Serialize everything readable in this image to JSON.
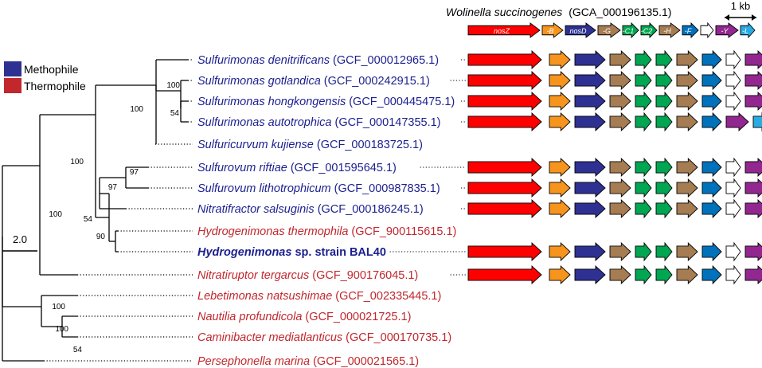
{
  "reference": {
    "species": "Wolinella succinogenes",
    "accession": "(GCA_000196135.1)",
    "genes": [
      "nosZ",
      "-B",
      "nosD",
      "-G",
      "-C1",
      "-C2",
      "-H",
      "-F",
      "",
      "-Y",
      "-L"
    ]
  },
  "scale_genes": "1 kb",
  "scale_tree": "2.0",
  "legend": [
    {
      "label": "Methophile",
      "color": "#2e3192"
    },
    {
      "label": "Thermophile",
      "color": "#c1272d"
    }
  ],
  "colors": {
    "nosZ": "#ff0000",
    "nosB": "#f7941d",
    "nosD": "#2e3192",
    "nosG": "#a67c52",
    "nosC": "#00a651",
    "nosF": "#0072bc",
    "none": "#ffffff",
    "nosY": "#92278f",
    "nosL": "#29abe2",
    "meso_text": "#1b1f8f",
    "thermo_text": "#c1272d"
  },
  "taxa": [
    {
      "italic": "Sulfurimonas denitrificans",
      "rest": " (GCF_000012965.1)",
      "group": "meso"
    },
    {
      "italic": "Sulfurimonas gotlandica",
      "rest": " (GCF_000242915.1)",
      "group": "meso"
    },
    {
      "italic": "Sulfurimonas hongkongensis",
      "rest": " (GCF_000445475.1)",
      "group": "meso"
    },
    {
      "italic": "Sulfurimonas autotrophica",
      "rest": " (GCF_000147355.1)",
      "group": "meso"
    },
    {
      "italic": "Sulfuricurvum kujiense",
      "rest": " (GCF_000183725.1)",
      "group": "meso"
    },
    {
      "italic": "Sulfurovum riftiae",
      "rest": " (GCF_001595645.1)",
      "group": "meso"
    },
    {
      "italic": "Sulfurovum lithotrophicum",
      "rest": " (GCF_000987835.1)",
      "group": "meso"
    },
    {
      "italic": "Nitratifractor salsuginis",
      "rest": " (GCF_000186245.1)",
      "group": "meso"
    },
    {
      "italic": "Hydrogenimonas thermophila",
      "rest": " (GCF_900115615.1)",
      "group": "thermo"
    },
    {
      "italic": "Hydrogenimonas",
      "rest": " sp. strain BAL40",
      "group": "meso",
      "bold": true
    },
    {
      "italic": "Nitratiruptor tergarcus",
      "rest": " (GCF_900176045.1)",
      "group": "thermo"
    },
    {
      "italic": "Lebetimonas natsushimae",
      "rest": " (GCF_002335445.1)",
      "group": "thermo"
    },
    {
      "italic": "Nautilia profundicola",
      "rest": " (GCF_000021725.1)",
      "group": "thermo"
    },
    {
      "italic": "Caminibacter mediatlanticus",
      "rest": " (GCF_000170735.1)",
      "group": "thermo"
    },
    {
      "italic": "Persephonella marina",
      "rest": " (GCF_000021565.1)",
      "group": "thermo"
    }
  ],
  "bootstrap": [
    "100",
    "100",
    "54",
    "100",
    "100",
    "97",
    "97",
    "54",
    "90",
    "100",
    "100",
    "54"
  ],
  "clusters": [
    [
      "nosZ",
      "nosB",
      "nosD",
      "nosG",
      "nosC",
      "nosC",
      "nosG",
      "nosF",
      "none",
      "nosY",
      "nosL"
    ],
    [
      "nosZ",
      "nosB",
      "nosD",
      "nosG",
      "nosC",
      "nosC",
      "nosG",
      "nosF",
      "none",
      "nosY",
      "nosL"
    ],
    [
      "nosZ",
      "nosB",
      "nosD",
      "nosG",
      "nosC",
      "nosC",
      "nosG",
      "nosF",
      "none",
      "nosY",
      "nosL"
    ],
    [
      "nosZ",
      "nosB",
      "nosD",
      "nosG",
      "nosC",
      "nosC",
      "nosG",
      "nosF",
      "nosY",
      "nosL"
    ],
    [],
    [
      "nosZ",
      "nosB",
      "nosD",
      "nosG",
      "nosC",
      "nosC",
      "nosG",
      "nosF",
      "none",
      "nosY",
      "nosL"
    ],
    [
      "nosZ",
      "nosB",
      "nosD",
      "nosG",
      "nosC",
      "nosC",
      "nosG",
      "nosF",
      "none",
      "nosY",
      "nosL"
    ],
    [
      "nosZ",
      "nosB",
      "nosD",
      "nosG",
      "nosC",
      "nosC",
      "nosG",
      "nosF",
      "none",
      "nosY",
      "nosL"
    ],
    [],
    [
      "nosZ",
      "nosB",
      "nosD",
      "nosG",
      "nosC",
      "nosC",
      "nosG",
      "nosF",
      "none",
      "nosY",
      "nosL"
    ],
    [
      "nosZ",
      "nosB",
      "nosD",
      "nosG",
      "nosC",
      "nosC",
      "nosG",
      "nosF",
      "none",
      "nosY",
      "nosL"
    ],
    [],
    [],
    [],
    []
  ]
}
